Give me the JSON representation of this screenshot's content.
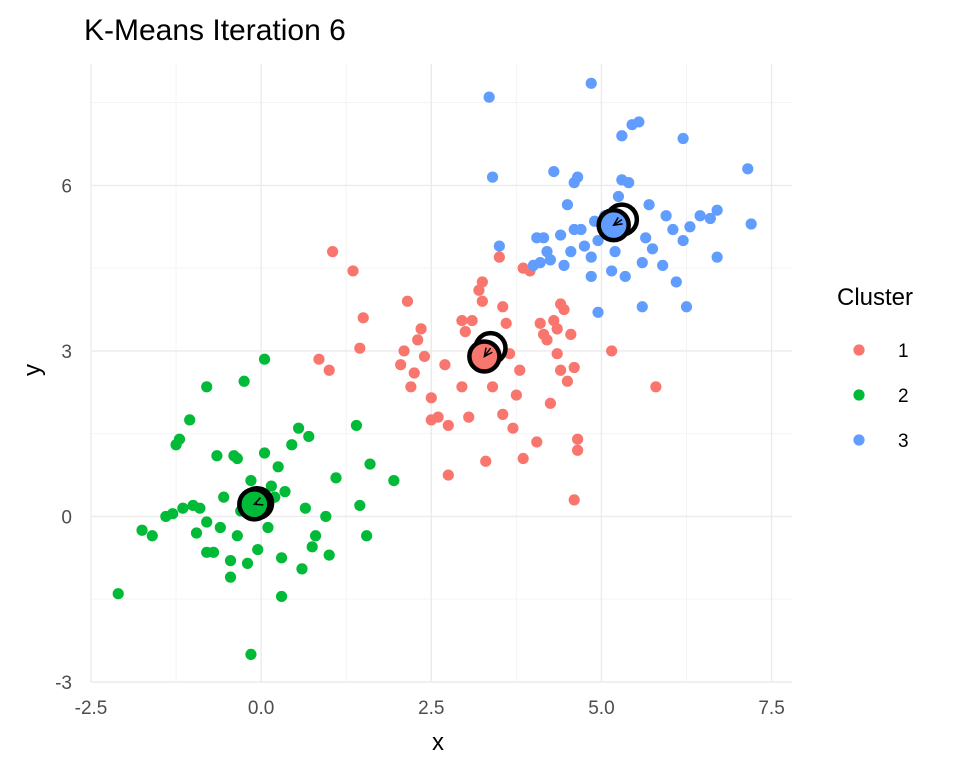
{
  "chart_data": {
    "type": "scatter",
    "title": "K-Means Iteration 6",
    "xlabel": "x",
    "ylabel": "y",
    "xlim": [
      -2.5,
      7.8
    ],
    "ylim": [
      -3,
      8.2
    ],
    "x_ticks": [
      -2.5,
      0,
      2.5,
      5,
      7.5
    ],
    "x_tick_labels": [
      "-2.5",
      "0.0",
      "2.5",
      "5.0",
      "7.5"
    ],
    "y_ticks": [
      -3,
      0,
      3,
      6
    ],
    "y_tick_labels": [
      "-3",
      "0",
      "3",
      "6"
    ],
    "grid": true,
    "legend": {
      "title": "Cluster",
      "position": "right"
    },
    "series": [
      {
        "name": "1",
        "color": "#F8766D",
        "points": [
          [
            1.05,
            4.8
          ],
          [
            1.35,
            4.45
          ],
          [
            1.5,
            3.6
          ],
          [
            1.45,
            3.05
          ],
          [
            0.85,
            2.85
          ],
          [
            1.0,
            2.65
          ],
          [
            2.05,
            2.75
          ],
          [
            2.1,
            3.0
          ],
          [
            2.15,
            3.9
          ],
          [
            2.25,
            2.6
          ],
          [
            2.2,
            2.35
          ],
          [
            2.3,
            3.2
          ],
          [
            2.35,
            3.4
          ],
          [
            2.4,
            2.9
          ],
          [
            2.5,
            2.15
          ],
          [
            2.5,
            1.75
          ],
          [
            2.6,
            1.8
          ],
          [
            2.7,
            2.75
          ],
          [
            2.75,
            1.65
          ],
          [
            2.75,
            0.75
          ],
          [
            2.95,
            3.55
          ],
          [
            2.95,
            2.35
          ],
          [
            3.0,
            3.35
          ],
          [
            3.05,
            1.8
          ],
          [
            3.1,
            3.55
          ],
          [
            3.2,
            4.1
          ],
          [
            3.25,
            3.9
          ],
          [
            3.25,
            4.25
          ],
          [
            3.3,
            1.0
          ],
          [
            3.4,
            2.35
          ],
          [
            3.5,
            4.7
          ],
          [
            3.55,
            3.8
          ],
          [
            3.6,
            3.5
          ],
          [
            3.55,
            1.85
          ],
          [
            3.65,
            2.95
          ],
          [
            3.7,
            1.6
          ],
          [
            3.75,
            2.2
          ],
          [
            3.8,
            2.65
          ],
          [
            3.85,
            4.5
          ],
          [
            3.85,
            1.05
          ],
          [
            3.95,
            4.45
          ],
          [
            4.05,
            1.35
          ],
          [
            4.1,
            3.5
          ],
          [
            4.15,
            3.3
          ],
          [
            4.2,
            3.2
          ],
          [
            4.25,
            2.05
          ],
          [
            4.3,
            3.55
          ],
          [
            4.35,
            3.4
          ],
          [
            4.35,
            2.95
          ],
          [
            4.4,
            3.85
          ],
          [
            4.4,
            2.65
          ],
          [
            4.45,
            3.75
          ],
          [
            4.5,
            2.45
          ],
          [
            4.55,
            3.3
          ],
          [
            4.6,
            2.7
          ],
          [
            4.65,
            1.4
          ],
          [
            4.65,
            1.2
          ],
          [
            4.6,
            0.3
          ],
          [
            5.15,
            3.0
          ],
          [
            5.8,
            2.35
          ]
        ]
      },
      {
        "name": "2",
        "color": "#00BA38",
        "points": [
          [
            -2.1,
            -1.4
          ],
          [
            -1.75,
            -0.25
          ],
          [
            -1.6,
            -0.35
          ],
          [
            -1.4,
            0.0
          ],
          [
            -1.3,
            0.05
          ],
          [
            -1.25,
            1.3
          ],
          [
            -1.2,
            1.4
          ],
          [
            -1.15,
            0.15
          ],
          [
            -1.05,
            1.75
          ],
          [
            -1.0,
            0.2
          ],
          [
            -0.95,
            -0.3
          ],
          [
            -0.9,
            0.15
          ],
          [
            -0.8,
            -0.1
          ],
          [
            -0.8,
            -0.65
          ],
          [
            -0.8,
            2.35
          ],
          [
            -0.7,
            -0.65
          ],
          [
            -0.65,
            1.1
          ],
          [
            -0.6,
            -0.2
          ],
          [
            -0.55,
            0.35
          ],
          [
            -0.45,
            -0.8
          ],
          [
            -0.45,
            -1.1
          ],
          [
            -0.4,
            1.1
          ],
          [
            -0.35,
            1.05
          ],
          [
            -0.35,
            -0.35
          ],
          [
            -0.3,
            0.1
          ],
          [
            -0.25,
            2.45
          ],
          [
            -0.2,
            -0.85
          ],
          [
            -0.15,
            0.65
          ],
          [
            -0.15,
            -2.5
          ],
          [
            -0.1,
            0.35
          ],
          [
            -0.05,
            0.2
          ],
          [
            -0.05,
            -0.6
          ],
          [
            0.05,
            2.85
          ],
          [
            0.05,
            1.15
          ],
          [
            0.1,
            -0.2
          ],
          [
            0.15,
            0.55
          ],
          [
            0.2,
            0.35
          ],
          [
            0.25,
            0.9
          ],
          [
            0.3,
            -0.75
          ],
          [
            0.3,
            -1.45
          ],
          [
            0.35,
            0.45
          ],
          [
            0.45,
            1.3
          ],
          [
            0.55,
            1.6
          ],
          [
            0.6,
            -0.95
          ],
          [
            0.65,
            0.15
          ],
          [
            0.7,
            1.45
          ],
          [
            0.75,
            -0.55
          ],
          [
            0.8,
            -0.35
          ],
          [
            0.95,
            0.0
          ],
          [
            1.0,
            -0.7
          ],
          [
            1.1,
            0.7
          ],
          [
            1.4,
            1.65
          ],
          [
            1.45,
            0.2
          ],
          [
            1.55,
            -0.35
          ],
          [
            1.6,
            0.95
          ],
          [
            1.95,
            0.65
          ]
        ]
      },
      {
        "name": "3",
        "color": "#619CFF",
        "points": [
          [
            3.35,
            7.6
          ],
          [
            3.4,
            6.15
          ],
          [
            3.5,
            4.9
          ],
          [
            4.0,
            4.55
          ],
          [
            4.05,
            5.05
          ],
          [
            4.1,
            4.6
          ],
          [
            4.15,
            5.05
          ],
          [
            4.2,
            4.8
          ],
          [
            4.25,
            4.65
          ],
          [
            4.3,
            6.25
          ],
          [
            4.4,
            5.1
          ],
          [
            4.45,
            4.55
          ],
          [
            4.5,
            5.65
          ],
          [
            4.55,
            4.8
          ],
          [
            4.6,
            5.2
          ],
          [
            4.6,
            6.05
          ],
          [
            4.65,
            6.15
          ],
          [
            4.7,
            5.2
          ],
          [
            4.75,
            4.9
          ],
          [
            4.85,
            4.7
          ],
          [
            4.85,
            4.35
          ],
          [
            4.85,
            7.85
          ],
          [
            4.9,
            5.35
          ],
          [
            4.95,
            5.0
          ],
          [
            4.95,
            3.7
          ],
          [
            5.05,
            5.45
          ],
          [
            5.15,
            4.45
          ],
          [
            5.2,
            4.8
          ],
          [
            5.25,
            5.8
          ],
          [
            5.3,
            6.1
          ],
          [
            5.3,
            6.9
          ],
          [
            5.35,
            4.35
          ],
          [
            5.4,
            6.05
          ],
          [
            5.45,
            7.1
          ],
          [
            5.55,
            7.15
          ],
          [
            5.6,
            4.6
          ],
          [
            5.6,
            3.8
          ],
          [
            5.65,
            5.05
          ],
          [
            5.7,
            5.65
          ],
          [
            5.75,
            4.85
          ],
          [
            5.9,
            4.55
          ],
          [
            5.95,
            5.45
          ],
          [
            6.05,
            5.2
          ],
          [
            6.1,
            4.25
          ],
          [
            6.2,
            6.85
          ],
          [
            6.2,
            5.0
          ],
          [
            6.25,
            3.8
          ],
          [
            6.3,
            5.25
          ],
          [
            6.45,
            5.45
          ],
          [
            6.6,
            5.4
          ],
          [
            6.7,
            5.55
          ],
          [
            6.7,
            4.7
          ],
          [
            7.15,
            6.3
          ],
          [
            7.2,
            5.3
          ]
        ]
      }
    ],
    "centroids": [
      {
        "cluster": "1",
        "x": 3.28,
        "y": 2.9,
        "prev_x": 3.37,
        "prev_y": 3.05
      },
      {
        "cluster": "2",
        "x": -0.1,
        "y": 0.22,
        "prev_x": -0.06,
        "prev_y": 0.24
      },
      {
        "cluster": "3",
        "x": 5.18,
        "y": 5.28,
        "prev_x": 5.3,
        "prev_y": 5.38
      }
    ]
  }
}
